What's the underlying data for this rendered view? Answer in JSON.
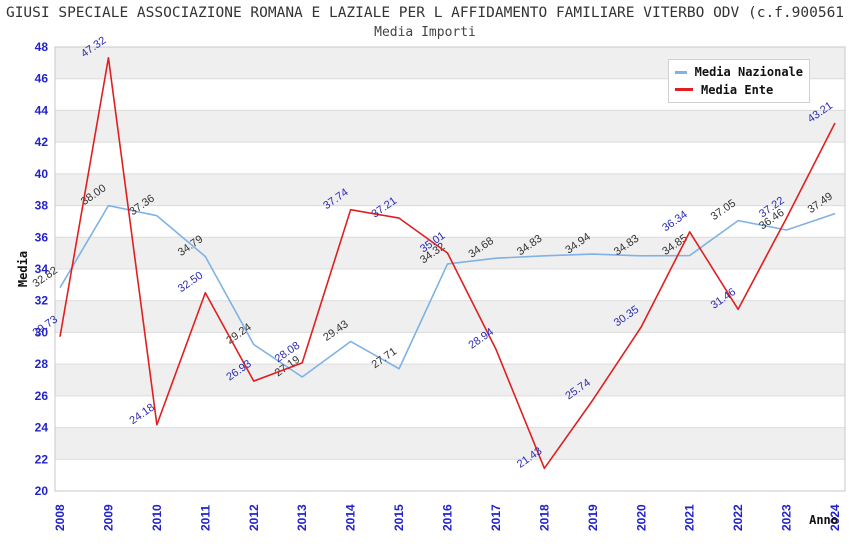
{
  "header": {
    "title": "GIUSI SPECIALE ASSOCIAZIONE ROMANA E LAZIALE PER L AFFIDAMENTO FAMILIARE VITERBO ODV (c.f.900561",
    "subtitle": "Media Importi"
  },
  "legend": {
    "position": "top-right",
    "items": [
      {
        "label": "Media Nazionale",
        "color": "#7FB2E5"
      },
      {
        "label": "Media Ente",
        "color": "#E02020"
      }
    ]
  },
  "chart_data": {
    "type": "line",
    "title": "Media Importi",
    "xlabel": "Anno",
    "ylabel": "Media",
    "x": [
      2008,
      2009,
      2010,
      2011,
      2012,
      2013,
      2014,
      2015,
      2016,
      2017,
      2018,
      2019,
      2020,
      2021,
      2022,
      2023,
      2024
    ],
    "series": [
      {
        "name": "Media Nazionale",
        "color": "#7FB2E5",
        "label_color": "#333333",
        "values": [
          32.82,
          38.0,
          37.36,
          34.79,
          29.24,
          27.19,
          29.43,
          27.71,
          34.32,
          34.68,
          34.83,
          34.94,
          34.83,
          34.85,
          37.05,
          36.46,
          37.49
        ]
      },
      {
        "name": "Media Ente",
        "color": "#E02020",
        "label_color": "#2B2BB4",
        "values": [
          29.73,
          47.32,
          24.18,
          32.5,
          26.93,
          28.08,
          37.74,
          37.21,
          35.01,
          28.94,
          21.43,
          25.74,
          30.35,
          36.34,
          31.46,
          37.22,
          43.21
        ]
      }
    ],
    "ylim": [
      20,
      48
    ],
    "ytick_step": 2,
    "grid": true,
    "band_colors": [
      "#efefef",
      "#ffffff"
    ],
    "gridline_color": "#dcdcdc",
    "frame_color": "#c8c8c8",
    "tick_label_color": "#2222CC",
    "axis_title_color": "#111111",
    "legend_position": "top-right"
  }
}
